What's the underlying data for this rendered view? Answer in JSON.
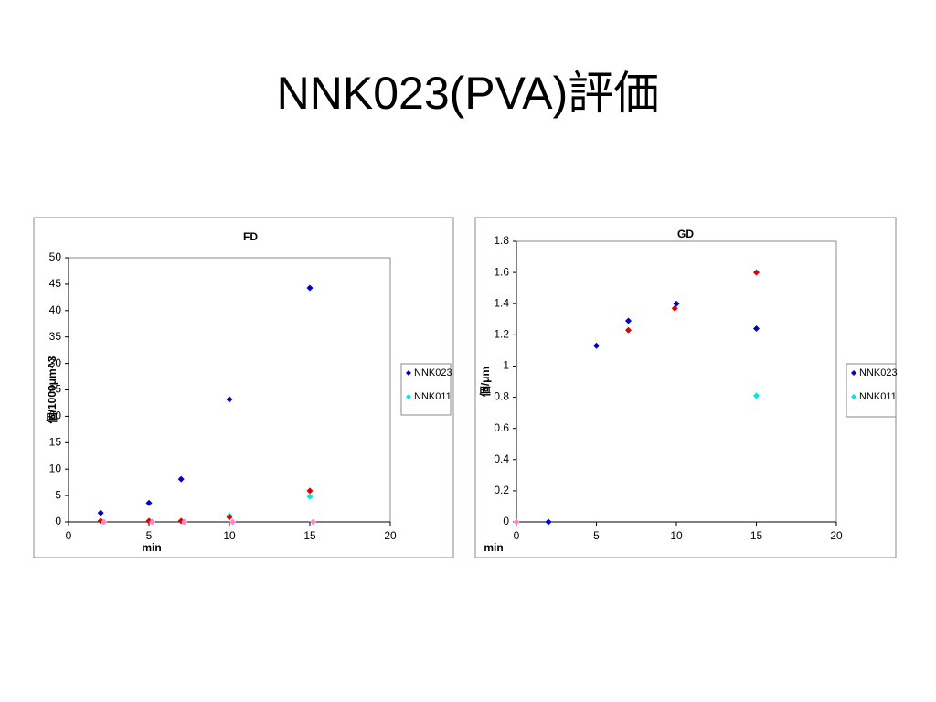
{
  "title": "NNK023(PVA)評価",
  "chart_data": [
    {
      "type": "scatter",
      "title": "FD",
      "x_label": "min",
      "y_label": "個/1000μm^3",
      "xlim": [
        0,
        20
      ],
      "xticks": [
        0,
        5,
        10,
        15,
        20
      ],
      "ylim": [
        0,
        50
      ],
      "yticks": [
        0,
        5,
        10,
        15,
        20,
        25,
        30,
        35,
        40,
        45,
        50
      ],
      "legend": "right",
      "series": [
        {
          "name": "NNK023",
          "color": "#0000cc",
          "x": [
            2,
            5,
            7,
            10,
            15
          ],
          "values": [
            1.7,
            3.6,
            8.1,
            23.2,
            44.3
          ]
        },
        {
          "name": "NNK011",
          "color": "#00e5e5",
          "x": [
            10,
            15
          ],
          "values": [
            1.2,
            4.8
          ]
        },
        {
          "color": "#dd0000",
          "x": [
            2,
            5,
            7,
            10,
            15
          ],
          "values": [
            0.2,
            0.2,
            0.2,
            0.9,
            5.9
          ]
        },
        {
          "color": "#ff88cc",
          "x": [
            2.2,
            5.2,
            7.2,
            10.2,
            15.2
          ],
          "values": [
            0,
            0,
            0,
            0,
            0
          ]
        }
      ]
    },
    {
      "type": "scatter",
      "title": "GD",
      "x_label": "min",
      "y_label": "個/μm",
      "xlim": [
        0,
        20
      ],
      "xticks": [
        0,
        5,
        10,
        15,
        20
      ],
      "ylim": [
        0,
        1.8
      ],
      "yticks": [
        0,
        0.2,
        0.4,
        0.6,
        0.8,
        1,
        1.2,
        1.4,
        1.6,
        1.8
      ],
      "legend": "right",
      "series": [
        {
          "name": "NNK023",
          "color": "#0000cc",
          "x": [
            2,
            5,
            7,
            10,
            15
          ],
          "values": [
            0,
            1.13,
            1.29,
            1.4,
            1.24
          ]
        },
        {
          "name": "NNK011",
          "color": "#00e5e5",
          "x": [
            15
          ],
          "values": [
            0.81
          ]
        },
        {
          "color": "#dd0000",
          "x": [
            7,
            9.9,
            15
          ],
          "values": [
            1.23,
            1.37,
            1.6
          ]
        },
        {
          "color": "#ff88cc",
          "x": [
            0
          ],
          "values": [
            0
          ]
        }
      ]
    }
  ]
}
